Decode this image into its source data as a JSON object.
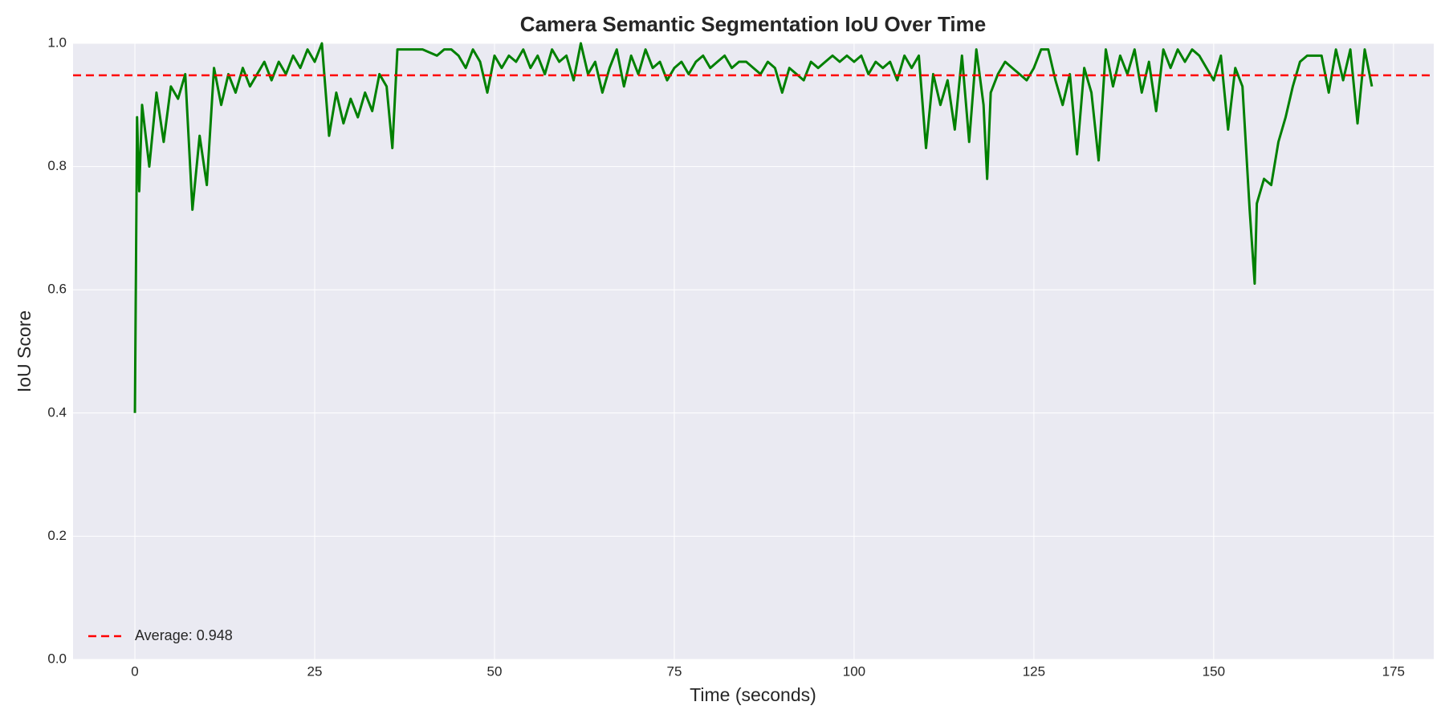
{
  "chart_data": {
    "type": "line",
    "title": "Camera Semantic Segmentation IoU Over Time",
    "x_label": "Time (seconds)",
    "y_label": "IoU Score",
    "x": [
      0,
      0.3,
      0.6,
      1,
      2,
      3,
      4,
      5,
      6,
      7,
      8,
      9,
      10,
      11,
      12,
      13,
      14,
      15,
      16,
      17,
      18,
      19,
      20,
      21,
      22,
      23,
      24,
      25,
      26,
      27,
      28,
      29,
      30,
      31,
      32,
      33,
      34,
      35,
      35.8,
      36.5,
      38,
      40,
      42,
      43,
      44,
      45,
      46,
      47,
      48,
      49,
      50,
      51,
      52,
      53,
      54,
      55,
      56,
      57,
      58,
      59,
      60,
      61,
      62,
      63,
      64,
      65,
      66,
      67,
      68,
      69,
      70,
      71,
      72,
      73,
      74,
      75,
      76,
      77,
      78,
      79,
      80,
      81,
      82,
      83,
      84,
      85,
      86,
      87,
      88,
      89,
      90,
      91,
      92,
      93,
      94,
      95,
      96,
      97,
      98,
      99,
      100,
      101,
      102,
      103,
      104,
      105,
      106,
      107,
      108,
      109,
      110,
      111,
      112,
      113,
      114,
      115,
      116,
      117,
      118,
      118.5,
      119,
      120,
      121,
      122,
      123,
      124,
      125,
      126,
      127,
      128,
      129,
      130,
      131,
      132,
      133,
      134,
      135,
      136,
      137,
      138,
      139,
      140,
      141,
      142,
      143,
      144,
      145,
      146,
      147,
      148,
      149,
      150,
      151,
      152,
      153,
      154,
      155,
      155.7,
      156,
      157,
      158,
      159,
      160,
      161,
      162,
      163,
      164,
      165,
      166,
      167,
      168,
      169,
      170,
      171,
      172
    ],
    "series": [
      {
        "color": "#008000",
        "values": [
          0.4,
          0.88,
          0.76,
          0.9,
          0.8,
          0.92,
          0.84,
          0.93,
          0.91,
          0.95,
          0.73,
          0.85,
          0.77,
          0.96,
          0.9,
          0.95,
          0.92,
          0.96,
          0.93,
          0.95,
          0.97,
          0.94,
          0.97,
          0.95,
          0.98,
          0.96,
          0.99,
          0.97,
          1.0,
          0.85,
          0.92,
          0.87,
          0.91,
          0.88,
          0.92,
          0.89,
          0.95,
          0.93,
          0.83,
          0.99,
          0.99,
          0.99,
          0.98,
          0.99,
          0.99,
          0.98,
          0.96,
          0.99,
          0.97,
          0.92,
          0.98,
          0.96,
          0.98,
          0.97,
          0.99,
          0.96,
          0.98,
          0.95,
          0.99,
          0.97,
          0.98,
          0.94,
          1.0,
          0.95,
          0.97,
          0.92,
          0.96,
          0.99,
          0.93,
          0.98,
          0.95,
          0.99,
          0.96,
          0.97,
          0.94,
          0.96,
          0.97,
          0.95,
          0.97,
          0.98,
          0.96,
          0.97,
          0.98,
          0.96,
          0.97,
          0.97,
          0.96,
          0.95,
          0.97,
          0.96,
          0.92,
          0.96,
          0.95,
          0.94,
          0.97,
          0.96,
          0.97,
          0.98,
          0.97,
          0.98,
          0.97,
          0.98,
          0.95,
          0.97,
          0.96,
          0.97,
          0.94,
          0.98,
          0.96,
          0.98,
          0.83,
          0.95,
          0.9,
          0.94,
          0.86,
          0.98,
          0.84,
          0.99,
          0.9,
          0.78,
          0.92,
          0.95,
          0.97,
          0.96,
          0.95,
          0.94,
          0.96,
          0.99,
          0.99,
          0.94,
          0.9,
          0.95,
          0.82,
          0.96,
          0.92,
          0.81,
          0.99,
          0.93,
          0.98,
          0.95,
          0.99,
          0.92,
          0.97,
          0.89,
          0.99,
          0.96,
          0.99,
          0.97,
          0.99,
          0.98,
          0.96,
          0.94,
          0.98,
          0.86,
          0.96,
          0.93,
          0.73,
          0.61,
          0.74,
          0.78,
          0.77,
          0.84,
          0.88,
          0.93,
          0.97,
          0.98,
          0.98,
          0.98,
          0.92,
          0.99,
          0.94,
          0.99,
          0.87,
          0.99,
          0.93
        ]
      }
    ],
    "reference_line": {
      "value": 0.948,
      "label": "Average: 0.948",
      "color": "#ff0000",
      "dashed": true
    },
    "xlim": [
      -8.6,
      180.6
    ],
    "ylim": [
      0,
      1
    ],
    "xticks": [
      0,
      25,
      50,
      75,
      100,
      125,
      150,
      175
    ],
    "yticks": [
      {
        "value": 0,
        "label": "0.0"
      },
      {
        "value": 0.2,
        "label": "0.2"
      },
      {
        "value": 0.4,
        "label": "0.4"
      },
      {
        "value": 0.6,
        "label": "0.6"
      },
      {
        "value": 0.8,
        "label": "0.8"
      },
      {
        "value": 1,
        "label": "1.0"
      }
    ],
    "grid": true,
    "legend_position": "lower left"
  }
}
